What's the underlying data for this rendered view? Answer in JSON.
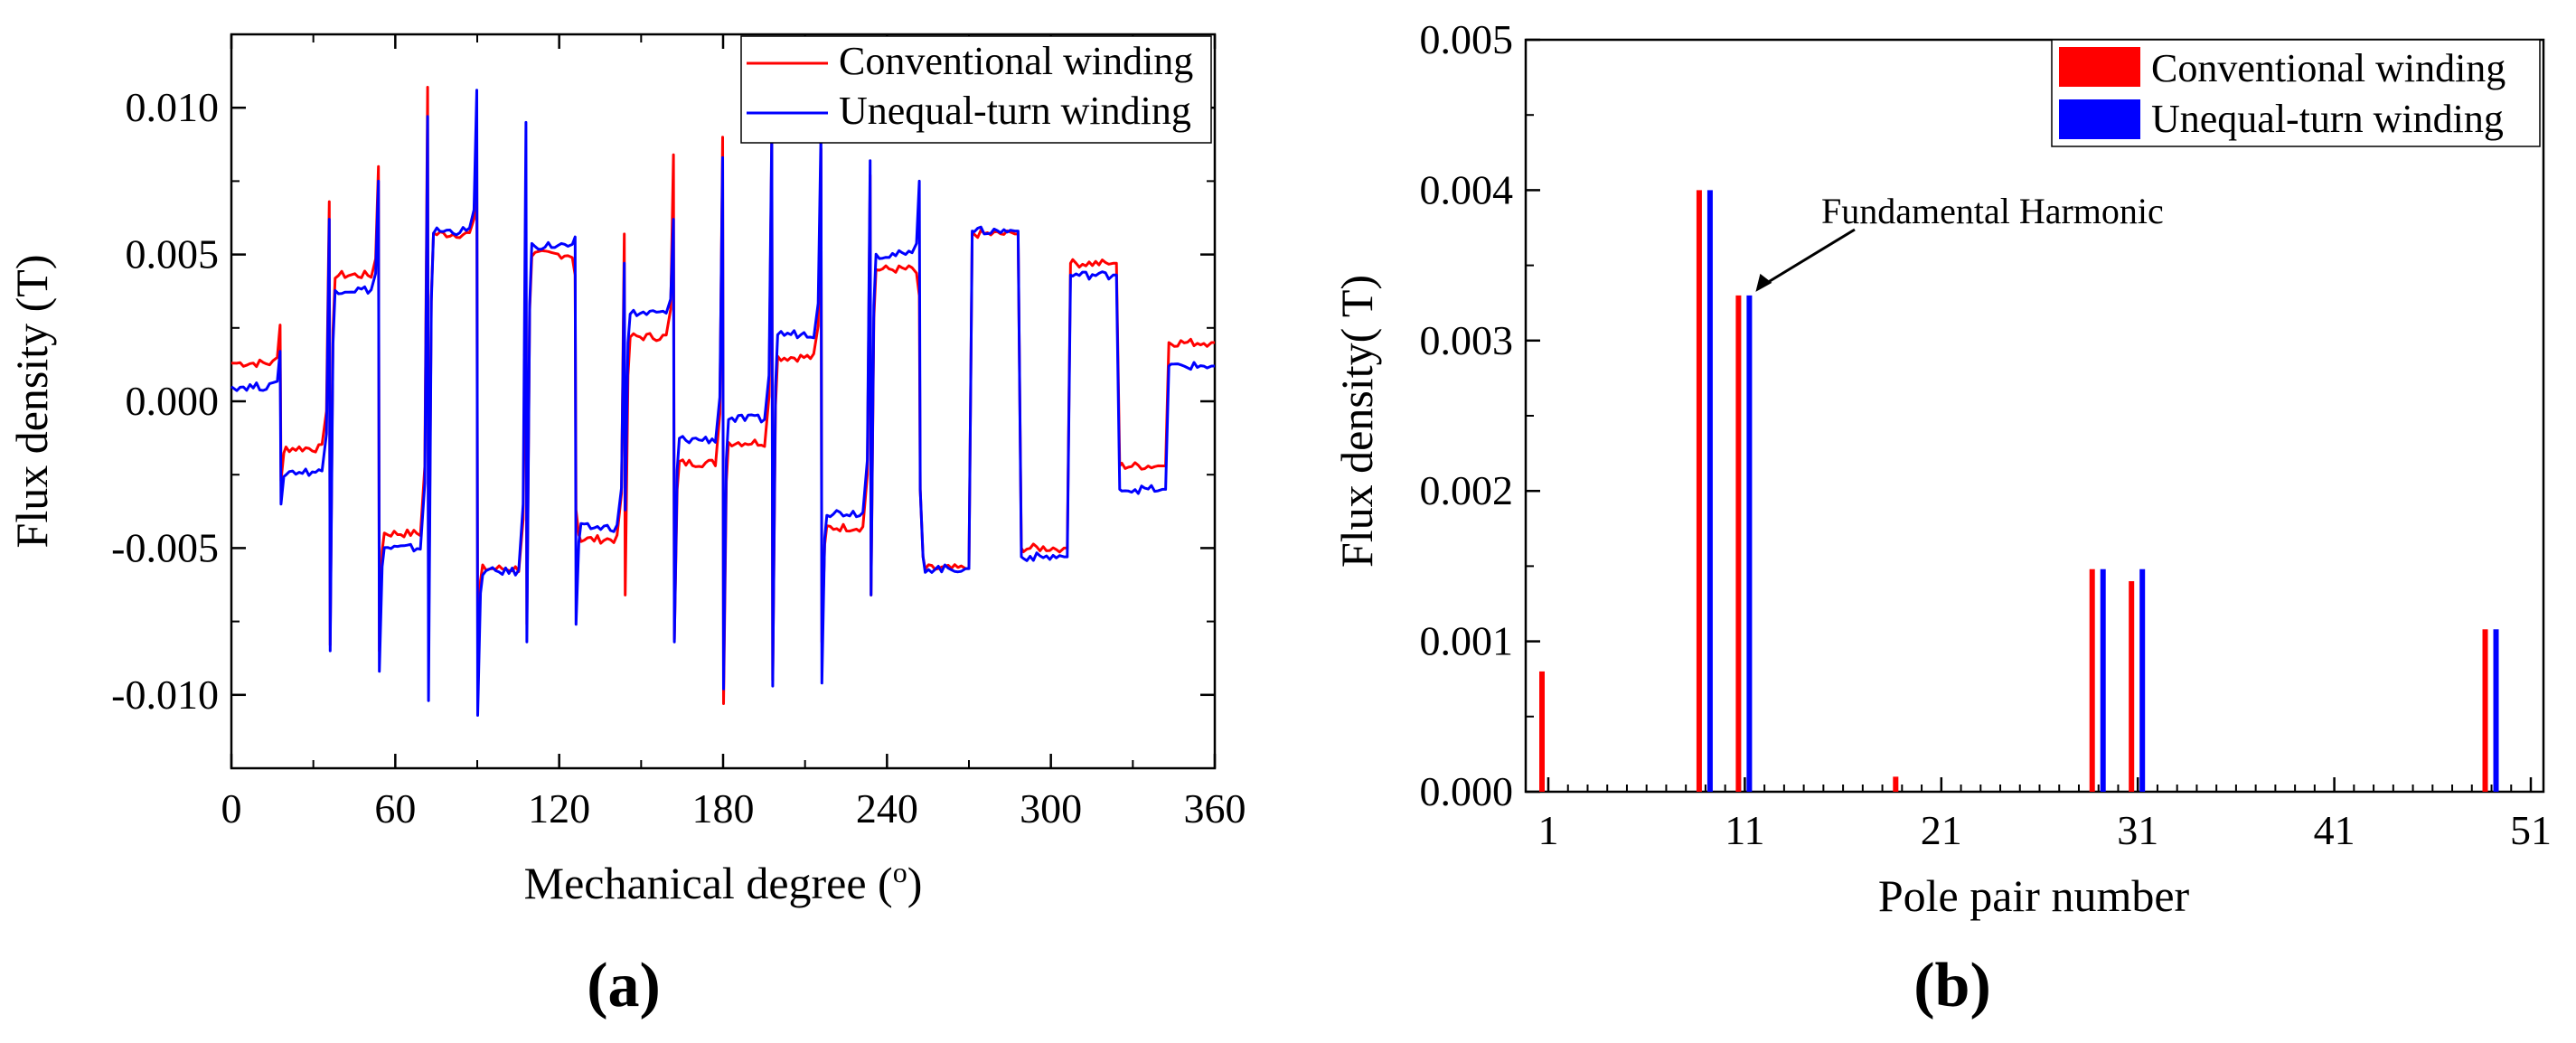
{
  "chart_data": [
    {
      "type": "line",
      "panel_label": "(a)",
      "title": "",
      "xlabel": "Mechanical degree (",
      "xlabel_sup": "o",
      "xlabel_tail": ")",
      "ylabel": "Flux density (T)",
      "xlim": [
        0,
        360
      ],
      "ylim": [
        -0.0125,
        0.0125
      ],
      "xticks": [
        0,
        60,
        120,
        180,
        240,
        300,
        360
      ],
      "xtick_labels": [
        "0",
        "60",
        "120",
        "180",
        "240",
        "300",
        "360"
      ],
      "yticks": [
        -0.01,
        -0.005,
        0.0,
        0.005,
        0.01
      ],
      "ytick_labels": [
        "-0.010",
        "-0.005",
        "0.000",
        "0.005",
        "0.010"
      ],
      "legend": "top-right",
      "step_width_deg": 18,
      "series": [
        {
          "name": "Conventional winding",
          "color": "#ff0000",
          "levels": [
            0.0013,
            -0.0016,
            0.0043,
            -0.0045,
            0.0057,
            -0.0057,
            0.005,
            -0.0047,
            0.0022,
            -0.0021,
            -0.0014,
            0.0015,
            -0.0043,
            0.0045,
            -0.0057,
            0.0057,
            -0.005,
            0.0047,
            -0.0022,
            0.002
          ],
          "spikes": [
            0.0026,
            -0.0027,
            0.0068,
            -0.0083,
            0.008,
            -0.0085,
            0.0107,
            -0.0085,
            0.0091,
            -0.0084,
            0.0055,
            -0.0076,
            0.0043,
            -0.0037,
            0.0057,
            -0.0066,
            0.0084,
            -0.0081,
            0.009,
            -0.0103,
            0.009,
            -0.0095,
            0.0086,
            -0.0082,
            0.0077,
            -0.0066,
            0.0036,
            -0.003
          ]
        },
        {
          "name": "Unequal-turn winding",
          "color": "#0000ff",
          "levels": [
            0.0005,
            -0.0024,
            0.0038,
            -0.005,
            0.0058,
            -0.0058,
            0.0053,
            -0.0043,
            0.003,
            -0.0013,
            -0.0006,
            0.0023,
            -0.0038,
            0.005,
            -0.0057,
            0.0058,
            -0.0053,
            0.0043,
            -0.003,
            0.0012
          ],
          "spikes": [
            0.0017,
            -0.0035,
            0.0062,
            -0.0085,
            0.0075,
            -0.0092,
            0.0097,
            -0.0102,
            0.0106,
            -0.0107,
            0.0095,
            -0.0082,
            0.0056,
            -0.0076,
            0.0047,
            -0.0037,
            0.0062,
            -0.0082,
            0.0083,
            -0.0098,
            0.0093,
            -0.0097,
            0.0092,
            -0.0096,
            0.0082,
            -0.0066,
            0.0075,
            -0.003
          ]
        }
      ]
    },
    {
      "type": "bar",
      "panel_label": "(b)",
      "title": "",
      "xlabel": "Pole pair number",
      "ylabel": "Flux density(  T)",
      "xlim": [
        0,
        51
      ],
      "ylim": [
        0,
        0.005
      ],
      "xticks": [
        1,
        11,
        21,
        31,
        41,
        51
      ],
      "xtick_labels": [
        "1",
        "11",
        "21",
        "31",
        "41",
        "51"
      ],
      "yticks": [
        0.0,
        0.001,
        0.002,
        0.003,
        0.004,
        0.005
      ],
      "ytick_labels": [
        "0.000",
        "0.001",
        "0.002",
        "0.003",
        "0.004",
        "0.005"
      ],
      "legend": "top-right",
      "annotation": {
        "text": "Fundamental Harmonic",
        "target_x": 11,
        "target_y": 0.0033
      },
      "categories": [
        1,
        9,
        11,
        19,
        29,
        31,
        49
      ],
      "series": [
        {
          "name": "Conventional winding",
          "color": "#ff0000",
          "values": [
            0.0008,
            0.004,
            0.0033,
            0.0001,
            0.00148,
            0.0014,
            0.00108
          ]
        },
        {
          "name": "Unequal-turn winding",
          "color": "#0000ff",
          "values": [
            0.0,
            0.004,
            0.0033,
            0.0,
            0.00148,
            0.00148,
            0.00108
          ]
        }
      ]
    }
  ]
}
